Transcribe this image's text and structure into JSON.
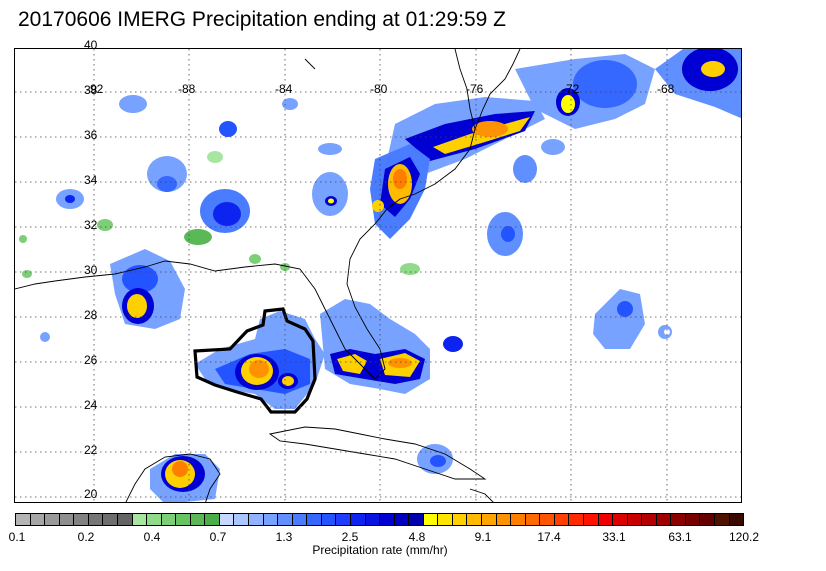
{
  "title": "20170606 IMERG Precipitation ending at 01:29:59 Z",
  "map": {
    "lat_labels": [
      "40",
      "38",
      "36",
      "34",
      "32",
      "30",
      "28",
      "26",
      "24",
      "22",
      "20"
    ],
    "lon_labels": [
      "-92",
      "-88",
      "-84",
      "-80",
      "-76",
      "-72",
      "-68"
    ]
  },
  "colorbar": {
    "label": "Precipitation rate (mm/hr)",
    "ticks": [
      "0.1",
      "0.2",
      "0.4",
      "0.7",
      "1.3",
      "2.5",
      "4.8",
      "9.1",
      "17.4",
      "33.1",
      "63.1",
      "120.2"
    ],
    "colors": [
      "#b4b4b4",
      "#a6a6a6",
      "#9a9a9a",
      "#8e8e8e",
      "#828282",
      "#767676",
      "#6e6e6e",
      "#646464",
      "#a6e6a0",
      "#90db8a",
      "#7ccf76",
      "#68c462",
      "#5ab956",
      "#4cae48",
      "#c6d8ff",
      "#aac6ff",
      "#8fb3ff",
      "#78a2ff",
      "#6090ff",
      "#4a7cff",
      "#3468ff",
      "#2454ff",
      "#1f3cff",
      "#0d24f0",
      "#0a14e0",
      "#0000d2",
      "#0000bf",
      "#0000ad",
      "#ffff00",
      "#ffe400",
      "#ffd000",
      "#ffbb00",
      "#ffa600",
      "#ff9200",
      "#ff7e00",
      "#ff6a00",
      "#ff5500",
      "#ff4000",
      "#ff2a00",
      "#ff1200",
      "#f00000",
      "#dc0000",
      "#c80000",
      "#b40000",
      "#a00000",
      "#8c0000",
      "#780000",
      "#640000",
      "#501200",
      "#3a0a00"
    ]
  }
}
